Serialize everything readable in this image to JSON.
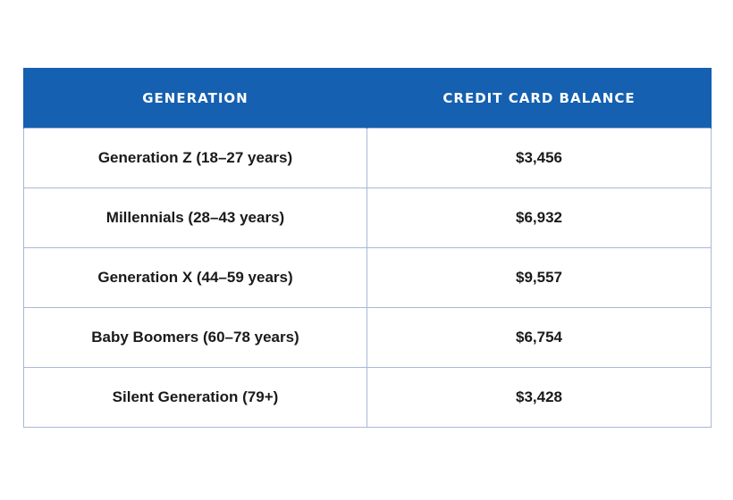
{
  "chart_data": {
    "type": "table",
    "columns": [
      "Generation",
      "Credit Card Balance"
    ],
    "rows": [
      [
        "Generation Z (18–27 years)",
        "$3,456"
      ],
      [
        "Millennials (28–43 years)",
        "$6,932"
      ],
      [
        "Generation X (44–59 years)",
        "$9,557"
      ],
      [
        "Baby Boomers (60–78 years)",
        "$6,754"
      ],
      [
        "Silent Generation (79+)",
        "$3,428"
      ]
    ],
    "header_color": "#1560b0"
  }
}
